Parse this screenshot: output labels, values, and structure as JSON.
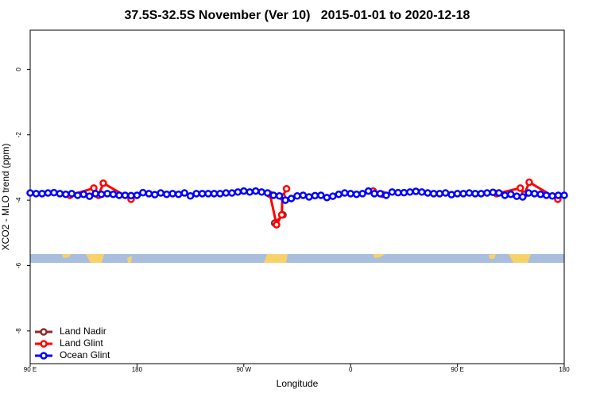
{
  "chart_data": {
    "type": "line",
    "title": "37.5S-32.5S November (Ver 10)   2015-01-01 to 2020-12-18",
    "x_label": "Longitude",
    "y_label": "XCO2 - MLO trend (ppm)",
    "xlim": [
      90,
      540
    ],
    "ylim": [
      -9,
      1.2
    ],
    "xticks": [
      {
        "value": 90,
        "label": "90 E"
      },
      {
        "value": 180,
        "label": "180"
      },
      {
        "value": 270,
        "label": "90 W"
      },
      {
        "value": 360,
        "label": "0"
      },
      {
        "value": 450,
        "label": "90 E"
      },
      {
        "value": 540,
        "label": "180"
      }
    ],
    "yticks": [
      0,
      -2,
      -4,
      -6,
      -8
    ],
    "legend": "bottomleft",
    "series": [
      {
        "name": "Land Nadir",
        "color": "#8b2a2a",
        "x": [
          296,
          303
        ],
        "values": [
          -4.7,
          -4.45
        ]
      },
      {
        "name": "Land Glint",
        "color": "#ff0000",
        "x": [
          123.5,
          143.6,
          147.6,
          151.6,
          175,
          null,
          292,
          297.6,
          302,
          302.5,
          306,
          null,
          379,
          387,
          null,
          483,
          503,
          506.5,
          510.5,
          534.6
        ],
        "values": [
          -3.85,
          -3.63,
          -3.85,
          -3.48,
          -3.97,
          null,
          -3.82,
          -4.75,
          -4.45,
          -3.9,
          -3.65,
          null,
          -3.72,
          -3.82,
          null,
          -3.8,
          -3.63,
          -3.82,
          -3.45,
          -3.97
        ]
      },
      {
        "name": "Ocean Glint",
        "color": "#0000ff",
        "x": [
          90,
          95,
          100,
          105,
          110,
          115,
          120,
          125,
          130,
          135,
          140,
          145,
          150,
          155,
          160,
          165,
          170,
          175,
          180,
          185,
          190,
          195,
          200,
          205,
          210,
          215,
          220,
          225,
          230,
          235,
          240,
          245,
          250,
          255,
          260,
          265,
          270,
          275,
          280,
          285,
          290,
          295,
          300,
          305,
          310,
          315,
          320,
          325,
          330,
          335,
          340,
          345,
          350,
          355,
          360,
          365,
          370,
          375,
          380,
          385,
          390,
          395,
          400,
          405,
          410,
          415,
          420,
          425,
          430,
          435,
          440,
          445,
          450,
          455,
          460,
          465,
          470,
          475,
          480,
          485,
          490,
          495,
          500,
          505,
          510,
          515,
          520,
          525,
          530,
          535,
          540
        ],
        "values": [
          -3.78,
          -3.8,
          -3.8,
          -3.78,
          -3.77,
          -3.8,
          -3.82,
          -3.8,
          -3.85,
          -3.82,
          -3.88,
          -3.8,
          -3.82,
          -3.8,
          -3.82,
          -3.85,
          -3.85,
          -3.86,
          -3.85,
          -3.77,
          -3.8,
          -3.83,
          -3.78,
          -3.82,
          -3.8,
          -3.82,
          -3.78,
          -3.87,
          -3.8,
          -3.8,
          -3.8,
          -3.8,
          -3.8,
          -3.78,
          -3.78,
          -3.75,
          -3.72,
          -3.75,
          -3.72,
          -3.75,
          -3.78,
          -3.85,
          -3.87,
          -4.0,
          -3.95,
          -3.87,
          -3.85,
          -3.9,
          -3.86,
          -3.85,
          -3.92,
          -3.88,
          -3.82,
          -3.78,
          -3.8,
          -3.82,
          -3.8,
          -3.72,
          -3.8,
          -3.8,
          -3.85,
          -3.75,
          -3.77,
          -3.77,
          -3.75,
          -3.73,
          -3.75,
          -3.78,
          -3.8,
          -3.8,
          -3.78,
          -3.83,
          -3.8,
          -3.8,
          -3.78,
          -3.8,
          -3.8,
          -3.78,
          -3.76,
          -3.78,
          -3.85,
          -3.82,
          -3.88,
          -3.9,
          -3.78,
          -3.8,
          -3.82,
          -3.85,
          -3.87,
          -3.85,
          -3.85
        ]
      }
    ]
  }
}
